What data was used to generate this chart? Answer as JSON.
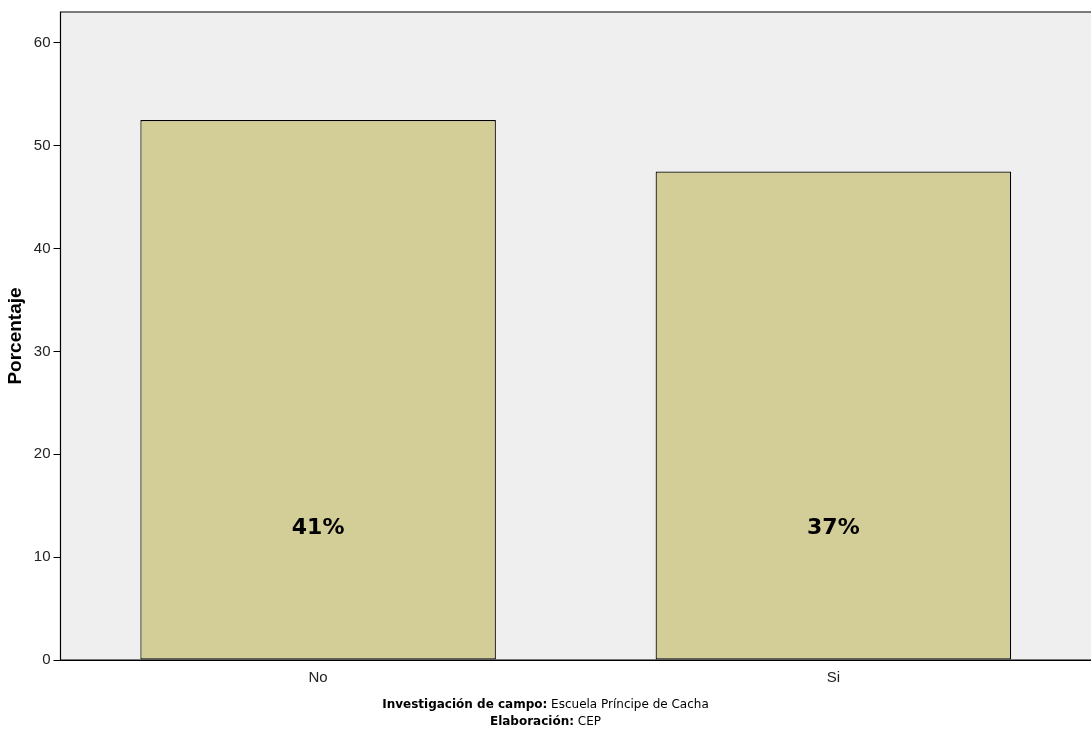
{
  "chart_data": {
    "type": "bar",
    "ylabel": "Porcentaje",
    "categories": [
      "No",
      "Si"
    ],
    "values": [
      52.5,
      47.5
    ],
    "color": "#d3cd98",
    "ylim": [
      0,
      63
    ],
    "yticks": [
      0,
      10,
      20,
      30,
      40,
      50,
      60
    ],
    "grid": false,
    "legend": false,
    "annotations": [
      "41%",
      "37%",
      "Investigación de campo: Escuela Príncipe de Cacha",
      "Elaboración: CEP"
    ]
  }
}
